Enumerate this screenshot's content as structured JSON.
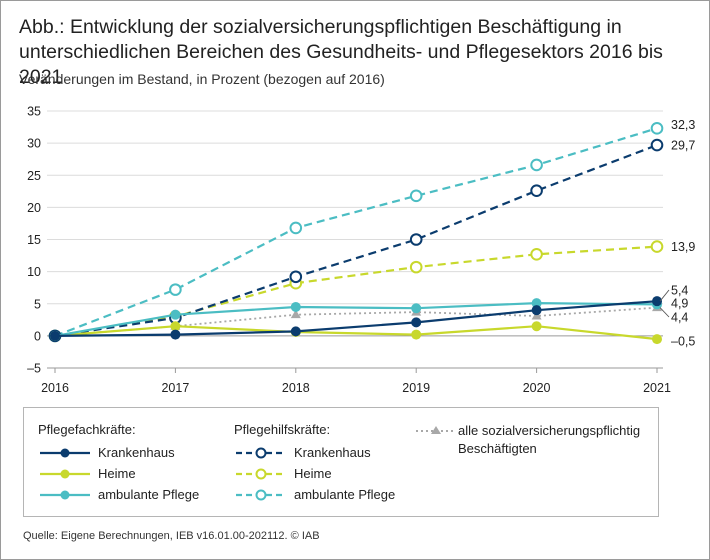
{
  "title": "Abb.: Entwicklung der sozialversicherungspflichtigen Beschäftigung in unterschiedlichen Bereichen des Gesundheits- und Pflegesektors 2016 bis 2021",
  "subtitle": "Veränderungen im Bestand, in Prozent (bezogen auf 2016)",
  "source": "Quelle: Eigene Berechnungen, IEB v16.01.00-202112. © IAB",
  "legend": {
    "group1_title": "Pflegefachkräfte:",
    "group2_title": "Pflegehilfskräfte:",
    "fach_krankenhaus": "Krankenhaus",
    "fach_heime": "Heime",
    "fach_ambulant": "ambulante Pflege",
    "hilf_krankenhaus": "Krankenhaus",
    "hilf_heime": "Heime",
    "hilf_ambulant": "ambulante Pflege",
    "alle_line1": "alle sozialversicherungspflichtig",
    "alle_line2": "Beschäftigten"
  },
  "chart_data": {
    "type": "line",
    "title": "Entwicklung der sozialversicherungspflichtigen Beschäftigung 2016 bis 2021",
    "ylabel": "Veränderungen im Bestand, in Prozent (bezogen auf 2016)",
    "xlabel": "",
    "x": [
      "2016",
      "2017",
      "2018",
      "2019",
      "2020",
      "2021"
    ],
    "ylim": [
      -5,
      35
    ],
    "yticks": [
      -5,
      0,
      5,
      10,
      15,
      20,
      25,
      30,
      35
    ],
    "grid": "horizontal",
    "colors": {
      "dark_blue": "#0b3c6e",
      "yellow_green": "#c8d82c",
      "teal": "#4bbdc3",
      "gray": "#a8a8a8"
    },
    "series": [
      {
        "id": "fach_krankenhaus",
        "name": "Pflegefachkräfte: Krankenhaus",
        "values": [
          0,
          0.2,
          0.7,
          2.1,
          4.0,
          5.4
        ],
        "end_label": "5,4",
        "color": "#0b3c6e",
        "style": "solid",
        "marker": "filled-circle"
      },
      {
        "id": "fach_heime",
        "name": "Pflegefachkräfte: Heime",
        "values": [
          0,
          1.5,
          0.6,
          0.2,
          1.5,
          -0.5
        ],
        "end_label": "–0,5",
        "color": "#c8d82c",
        "style": "solid",
        "marker": "filled-circle"
      },
      {
        "id": "fach_ambulant",
        "name": "Pflegefachkräfte: ambulante Pflege",
        "values": [
          0,
          3.3,
          4.5,
          4.3,
          5.1,
          4.9
        ],
        "end_label": "4,9",
        "color": "#4bbdc3",
        "style": "solid",
        "marker": "filled-circle"
      },
      {
        "id": "hilf_krankenhaus",
        "name": "Pflegehilfskräfte: Krankenhaus",
        "values": [
          0,
          2.8,
          9.2,
          15.0,
          22.6,
          29.7
        ],
        "end_label": "29,7",
        "color": "#0b3c6e",
        "style": "dashed",
        "marker": "open-circle"
      },
      {
        "id": "hilf_heime",
        "name": "Pflegehilfskräfte: Heime",
        "values": [
          0,
          3.0,
          8.2,
          10.7,
          12.7,
          13.9
        ],
        "end_label": "13,9",
        "color": "#c8d82c",
        "style": "dashed",
        "marker": "open-circle"
      },
      {
        "id": "hilf_ambulant",
        "name": "Pflegehilfskräfte: ambulante Pflege",
        "values": [
          0,
          7.2,
          16.8,
          21.8,
          26.6,
          32.3
        ],
        "end_label": "32,3",
        "color": "#4bbdc3",
        "style": "dashed",
        "marker": "open-circle"
      },
      {
        "id": "alle",
        "name": "alle sozialversicherungspflichtig Beschäftigten",
        "values": [
          0,
          1.5,
          3.3,
          3.7,
          3.1,
          4.4
        ],
        "end_label": "4,4",
        "color": "#a8a8a8",
        "style": "dotted",
        "marker": "triangle"
      }
    ]
  }
}
